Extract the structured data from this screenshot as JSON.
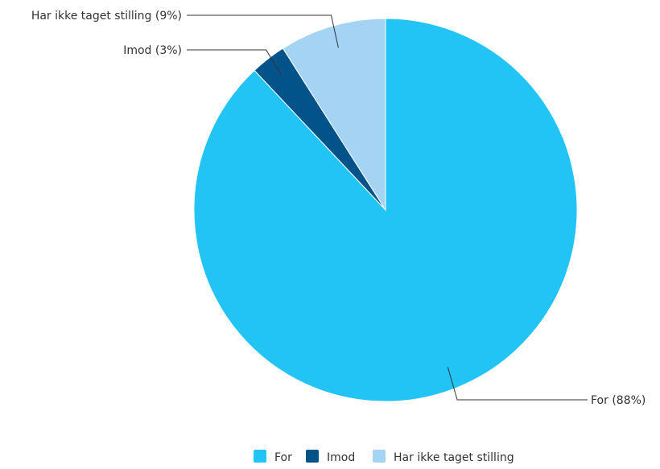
{
  "chart_data": {
    "type": "pie",
    "title": "",
    "slices": [
      {
        "label": "For",
        "value": 88,
        "color": "#22c4f5",
        "data_label": "For (88%)"
      },
      {
        "label": "Imod",
        "value": 3,
        "color": "#01538a",
        "data_label": "Imod (3%)"
      },
      {
        "label": "Har ikke taget stilling",
        "value": 9,
        "color": "#a5d3f4",
        "data_label": "Har ikke taget stilling (9%)"
      }
    ],
    "legend": {
      "position": "bottom",
      "items": [
        "For",
        "Imod",
        "Har ikke taget stilling"
      ]
    }
  }
}
